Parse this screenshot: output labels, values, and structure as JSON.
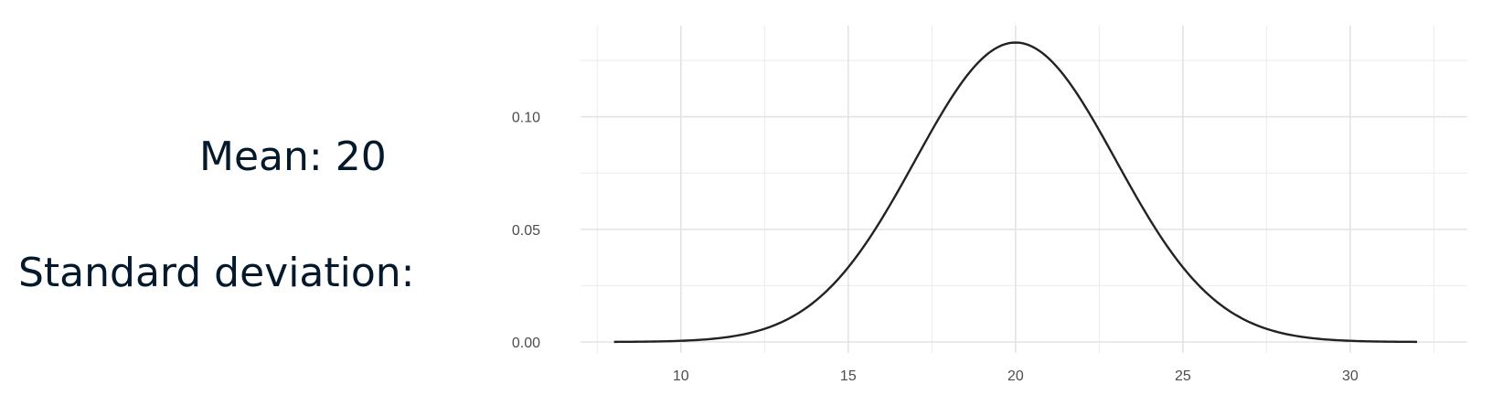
{
  "labels": {
    "mean": "Mean: 20",
    "sd": "Standard deviation:"
  },
  "chart_data": {
    "type": "line",
    "distribution": "normal",
    "mean": 20,
    "sd": 3,
    "x_range": [
      8,
      32
    ],
    "xlim": [
      7,
      33.5
    ],
    "ylim": [
      0,
      0.1405
    ],
    "x_ticks": [
      10,
      15,
      20,
      25,
      30
    ],
    "x_tick_labels": [
      "10",
      "15",
      "20",
      "25",
      "30"
    ],
    "y_ticks": [
      0,
      0.05,
      0.1
    ],
    "y_tick_labels": [
      "0.00",
      "0.05",
      "0.10"
    ],
    "x_minor_ticks": [
      7.5,
      12.5,
      17.5,
      22.5,
      27.5,
      32.5
    ],
    "y_minor_ticks": [
      0.025,
      0.075,
      0.125
    ],
    "grid": true,
    "line_color": "#222222",
    "grid_color": "#ebebeb",
    "title": "",
    "xlabel": "",
    "ylabel": ""
  }
}
